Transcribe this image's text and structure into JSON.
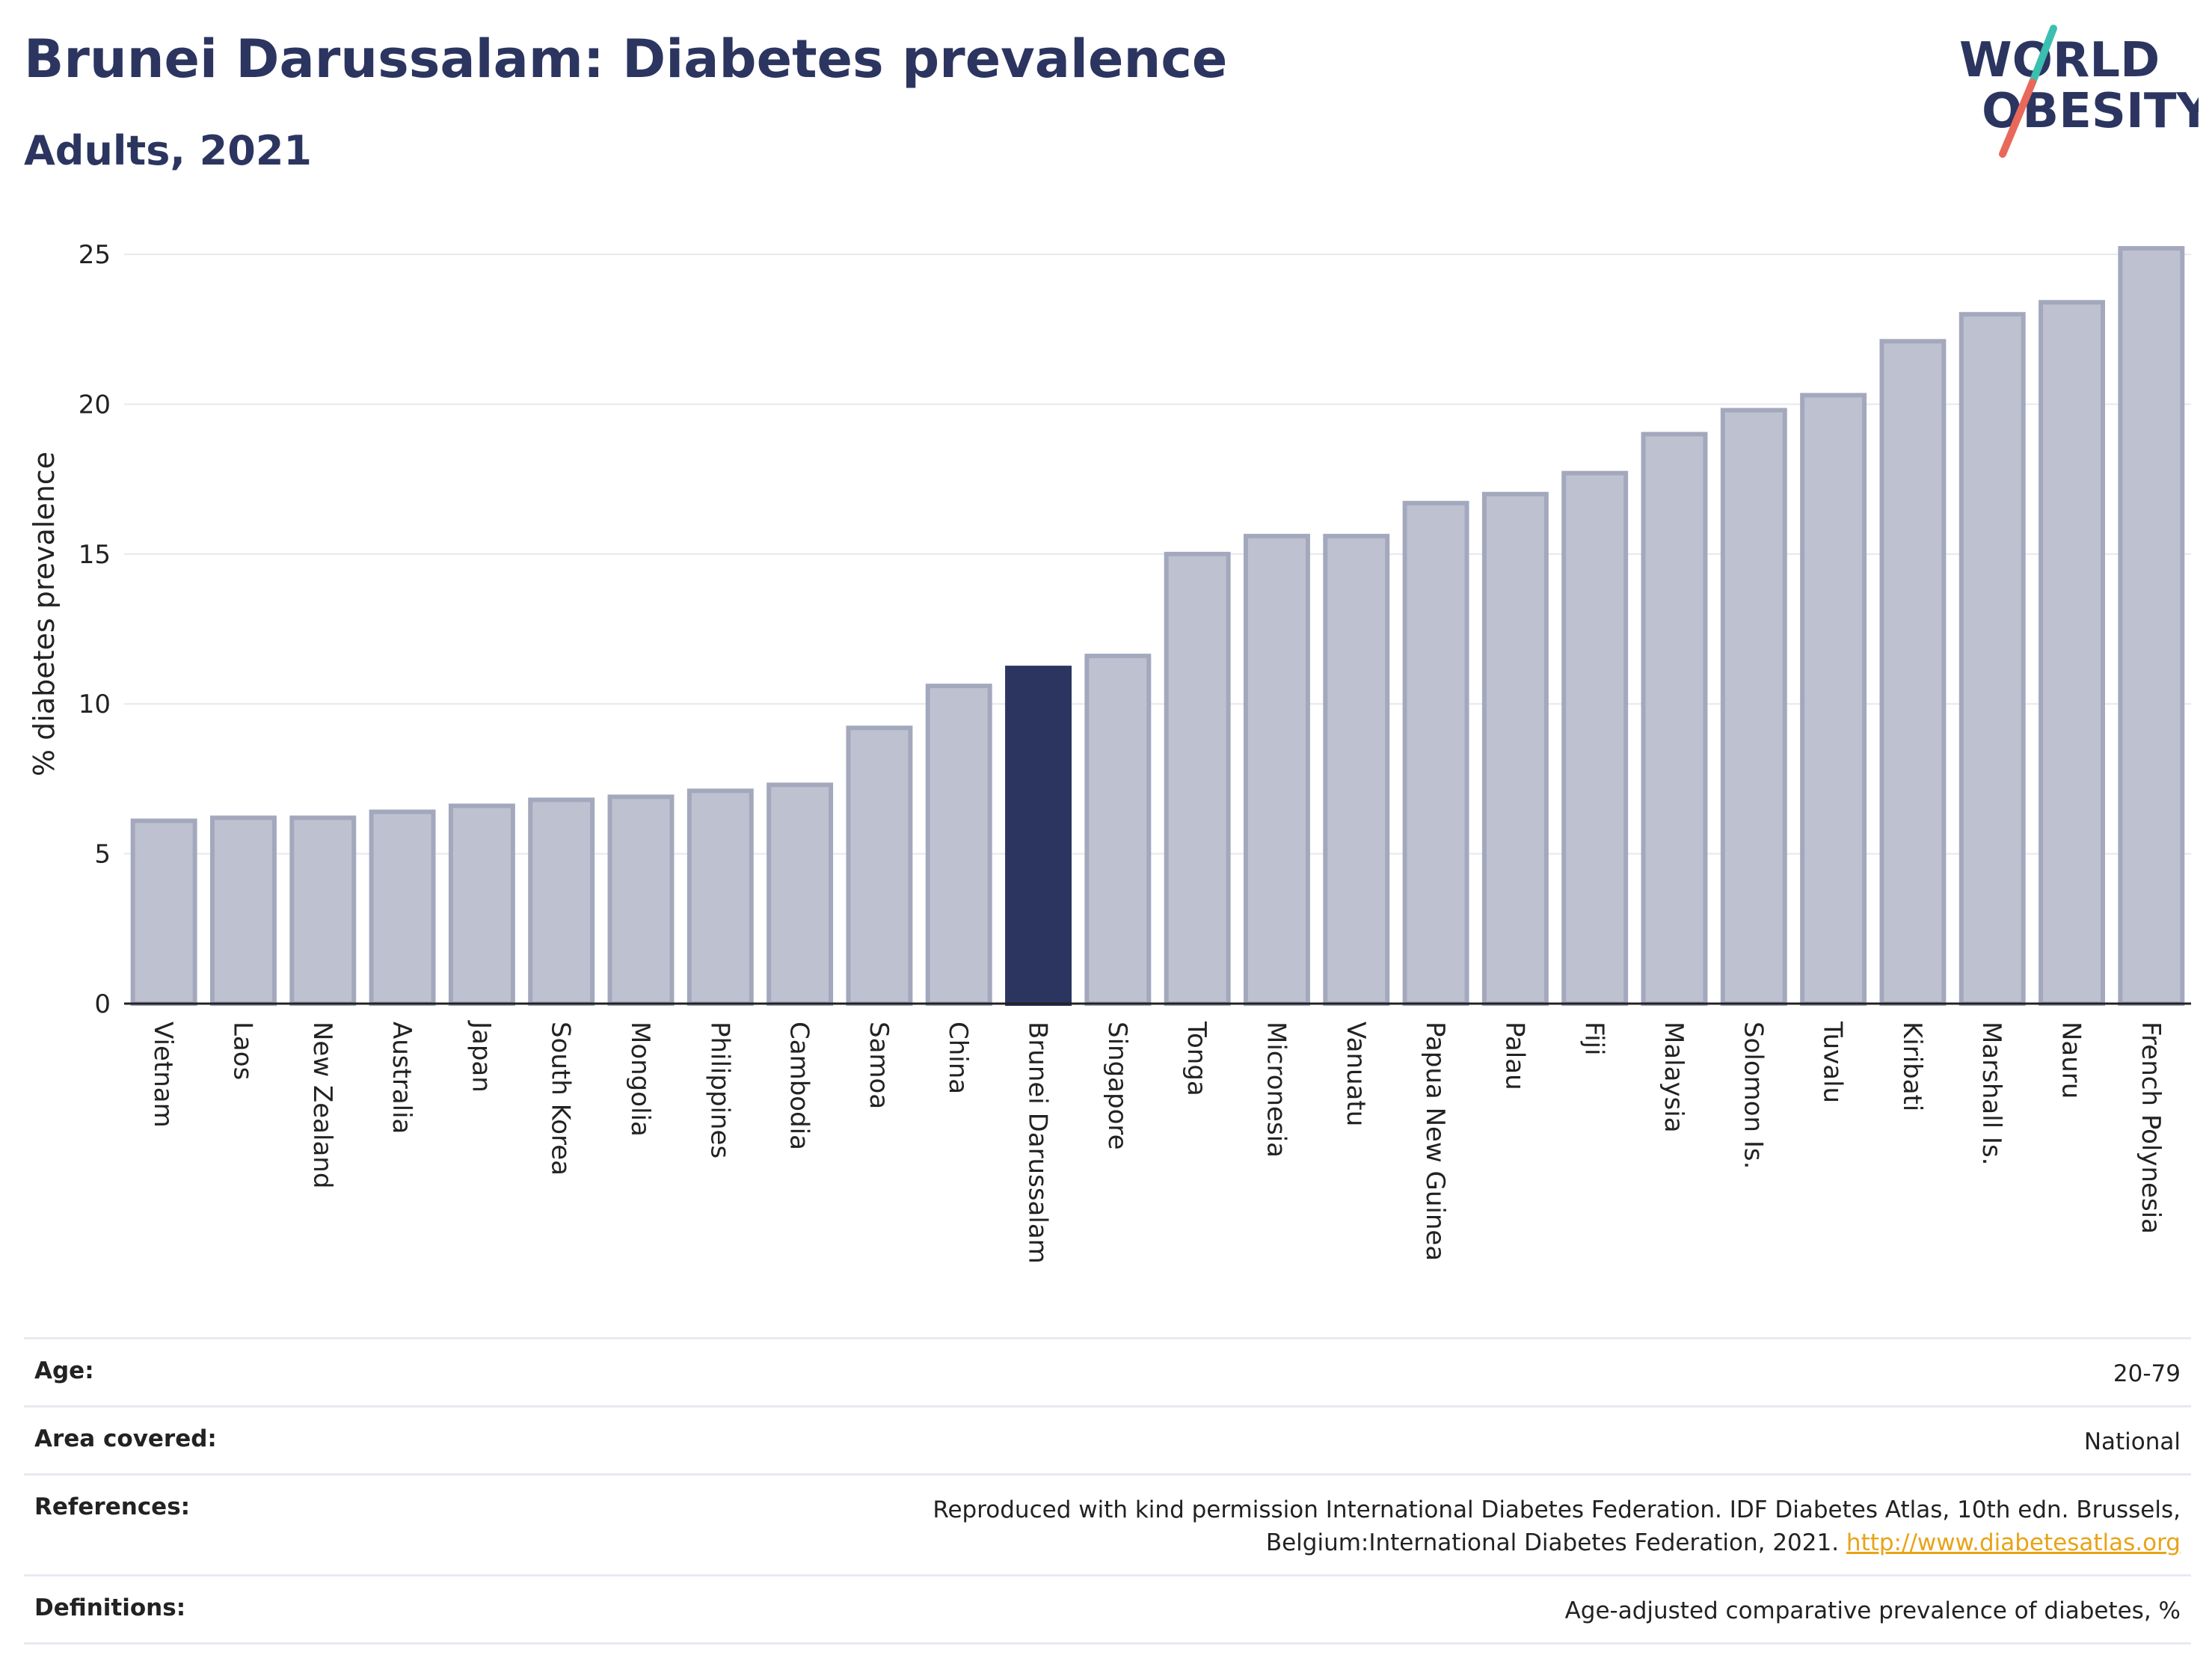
{
  "header": {
    "title": "Brunei Darussalam: Diabetes prevalence",
    "subtitle": "Adults, 2021"
  },
  "logo": {
    "line1": "WORLD",
    "line2": "OBESITY",
    "accent_teal": "#3bbfb0",
    "accent_coral": "#e8695a",
    "color": "#2b3560"
  },
  "chart_data": {
    "type": "bar",
    "title": "Brunei Darussalam: Diabetes prevalence",
    "subtitle": "Adults, 2021",
    "ylabel": "% diabetes prevalence",
    "ylim": [
      0,
      25
    ],
    "yticks": [
      0,
      5,
      10,
      15,
      20,
      25
    ],
    "grid": true,
    "highlight": "Brunei Darussalam",
    "colors": {
      "bar": "#bec2d0",
      "bar_border": "#a3a8bd",
      "highlight": "#2b3560"
    },
    "categories": [
      "Vietnam",
      "Laos",
      "New Zealand",
      "Australia",
      "Japan",
      "South Korea",
      "Mongolia",
      "Philippines",
      "Cambodia",
      "Samoa",
      "China",
      "Brunei Darussalam",
      "Singapore",
      "Tonga",
      "Micronesia",
      "Vanuatu",
      "Papua New Guinea",
      "Palau",
      "Fiji",
      "Malaysia",
      "Solomon Is.",
      "Tuvalu",
      "Kiribati",
      "Marshall Is.",
      "Nauru",
      "French Polynesia"
    ],
    "values": [
      6.1,
      6.2,
      6.2,
      6.4,
      6.6,
      6.8,
      6.9,
      7.1,
      7.3,
      9.2,
      10.6,
      11.2,
      11.6,
      15.0,
      15.6,
      15.6,
      16.7,
      17.0,
      17.7,
      19.0,
      19.8,
      20.3,
      22.1,
      23.0,
      23.4,
      25.2
    ]
  },
  "info": {
    "age": {
      "label": "Age:",
      "value": "20-79"
    },
    "area": {
      "label": "Area covered:",
      "value": "National"
    },
    "references": {
      "label": "References:",
      "value": "Reproduced with kind permission International Diabetes Federation.  IDF Diabetes Atlas, 10th edn. Brussels, Belgium:International Diabetes Federation, 2021. ",
      "link": "http://www.diabetesatlas.org"
    },
    "definitions": {
      "label": "Definitions:",
      "value": "Age-adjusted comparative prevalence of diabetes, %"
    }
  }
}
